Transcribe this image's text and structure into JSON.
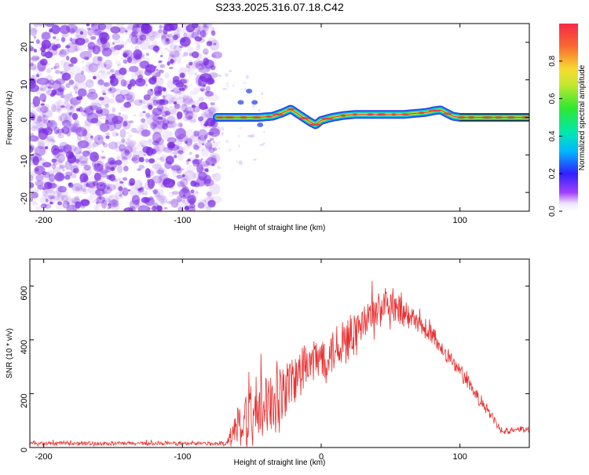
{
  "title": "S233.2025.316.07.18.C42",
  "chart_data": [
    {
      "type": "heatmap",
      "name": "spectrogram",
      "xlabel": "Height of straight line (km)",
      "ylabel": "Frequency (Hz)",
      "xlim": [
        -210,
        150
      ],
      "ylim": [
        -25,
        25
      ],
      "xticks": [
        -200,
        -100,
        0,
        100
      ],
      "xtick_labels": [
        "-200",
        "-100",
        "",
        "100"
      ],
      "yticks": [
        20,
        10,
        0,
        -10,
        -20
      ],
      "ytick_labels": [
        "20",
        "10",
        "0",
        "-10",
        "-20"
      ],
      "noise_region_x": [
        -210,
        -75
      ],
      "ridge_x": [
        -75,
        -65,
        -55,
        -45,
        -35,
        -28,
        -22,
        -15,
        -8,
        -4,
        0,
        8,
        16,
        25,
        40,
        60,
        75,
        82,
        86,
        90,
        95,
        100,
        150
      ],
      "ridge_freq": [
        0.0,
        0.0,
        0.0,
        0.0,
        0.3,
        1.2,
        2.2,
        0.5,
        -1.2,
        -2.0,
        -0.8,
        0.0,
        0.5,
        0.8,
        0.8,
        0.8,
        1.3,
        1.8,
        2.0,
        1.2,
        0.3,
        0.0,
        0.0
      ],
      "colorbar": {
        "label": "Normalized spectral amplitude",
        "ticks": [
          0.0,
          0.2,
          0.4,
          0.6,
          0.8
        ],
        "tick_labels": [
          "0.0",
          "0.2",
          "0.4",
          "0.6",
          "0.8"
        ],
        "range": [
          0,
          1
        ]
      },
      "colors": {
        "noise": "#7a2be2",
        "ridge_core": "#e83a3a",
        "ridge_mid": "#e8e83a",
        "ridge_edge": "#3ae850",
        "ridge_outer": "#2a4ae8"
      }
    },
    {
      "type": "line",
      "name": "snr",
      "xlabel": "Height of straight line (km)",
      "ylabel": "SNR (10 * v/v)",
      "xlim": [
        -210,
        150
      ],
      "ylim": [
        0,
        700
      ],
      "xticks": [
        -200,
        -100,
        0,
        100
      ],
      "xtick_labels": [
        "-200",
        "-100",
        "0",
        "100"
      ],
      "yticks": [
        0,
        200,
        400,
        600
      ],
      "ytick_labels": [
        "0",
        "200",
        "400",
        "600"
      ],
      "color": "#e83030",
      "envelope_x": [
        -210,
        -68,
        -62,
        -55,
        -45,
        -35,
        -25,
        -15,
        -5,
        5,
        15,
        25,
        35,
        45,
        55,
        65,
        75,
        85,
        95,
        105,
        115,
        125,
        130,
        140,
        150
      ],
      "envelope_base": [
        15,
        15,
        75,
        95,
        120,
        160,
        220,
        280,
        320,
        350,
        385,
        430,
        480,
        520,
        505,
        470,
        440,
        380,
        320,
        245,
        170,
        100,
        55,
        70,
        65
      ],
      "envelope_amp": [
        8,
        8,
        80,
        110,
        140,
        150,
        130,
        110,
        100,
        95,
        100,
        95,
        90,
        90,
        70,
        55,
        45,
        40,
        35,
        30,
        25,
        20,
        12,
        12,
        12
      ]
    }
  ]
}
